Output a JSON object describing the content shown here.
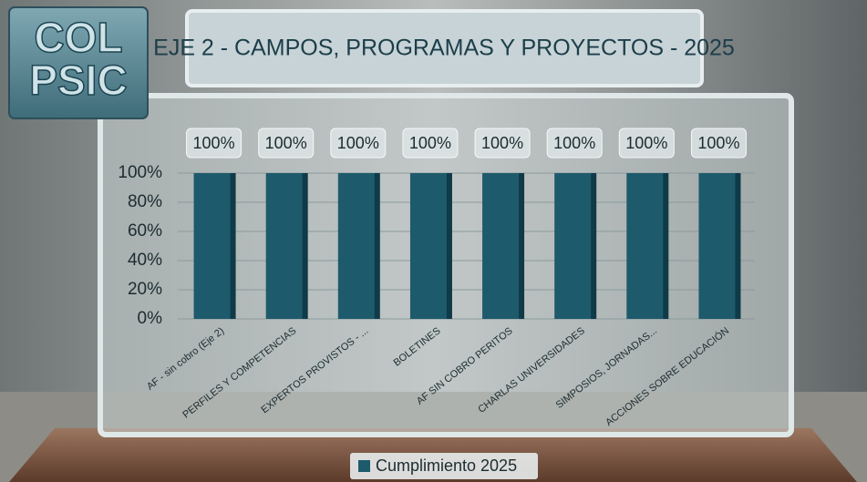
{
  "logo": {
    "lines": [
      "COL",
      "PSIC"
    ]
  },
  "chart_data": {
    "type": "bar",
    "title": "EJE 2 - CAMPOS, PROGRAMAS Y PROYECTOS - 2025",
    "categories": [
      "AF - sin cobro (Eje 2)",
      "PERFILES Y COMPETENCIAS",
      "EXPERTOS PROVISTOS - ...",
      "BOLETINES",
      "AF SIN COBRO PERITOS",
      "CHARLAS UNIVERSIDADES",
      "SIMPOSIOS, JORNADAS...",
      "ACCIONES SOBRE EDUCACIÓN"
    ],
    "series": [
      {
        "name": "Cumplimiento 2025",
        "color": "#1d5a6c",
        "values": [
          100,
          100,
          100,
          100,
          100,
          100,
          100,
          100
        ],
        "value_labels": [
          "100%",
          "100%",
          "100%",
          "100%",
          "100%",
          "100%",
          "100%",
          "100%"
        ]
      }
    ],
    "ylim": [
      0,
      100
    ],
    "yticks": [
      {
        "value": 0,
        "label": "0%"
      },
      {
        "value": 20,
        "label": "20%"
      },
      {
        "value": 40,
        "label": "40%"
      },
      {
        "value": 60,
        "label": "60%"
      },
      {
        "value": 80,
        "label": "80%"
      },
      {
        "value": 100,
        "label": "100%"
      }
    ],
    "grid": true,
    "legend": "bottom"
  }
}
